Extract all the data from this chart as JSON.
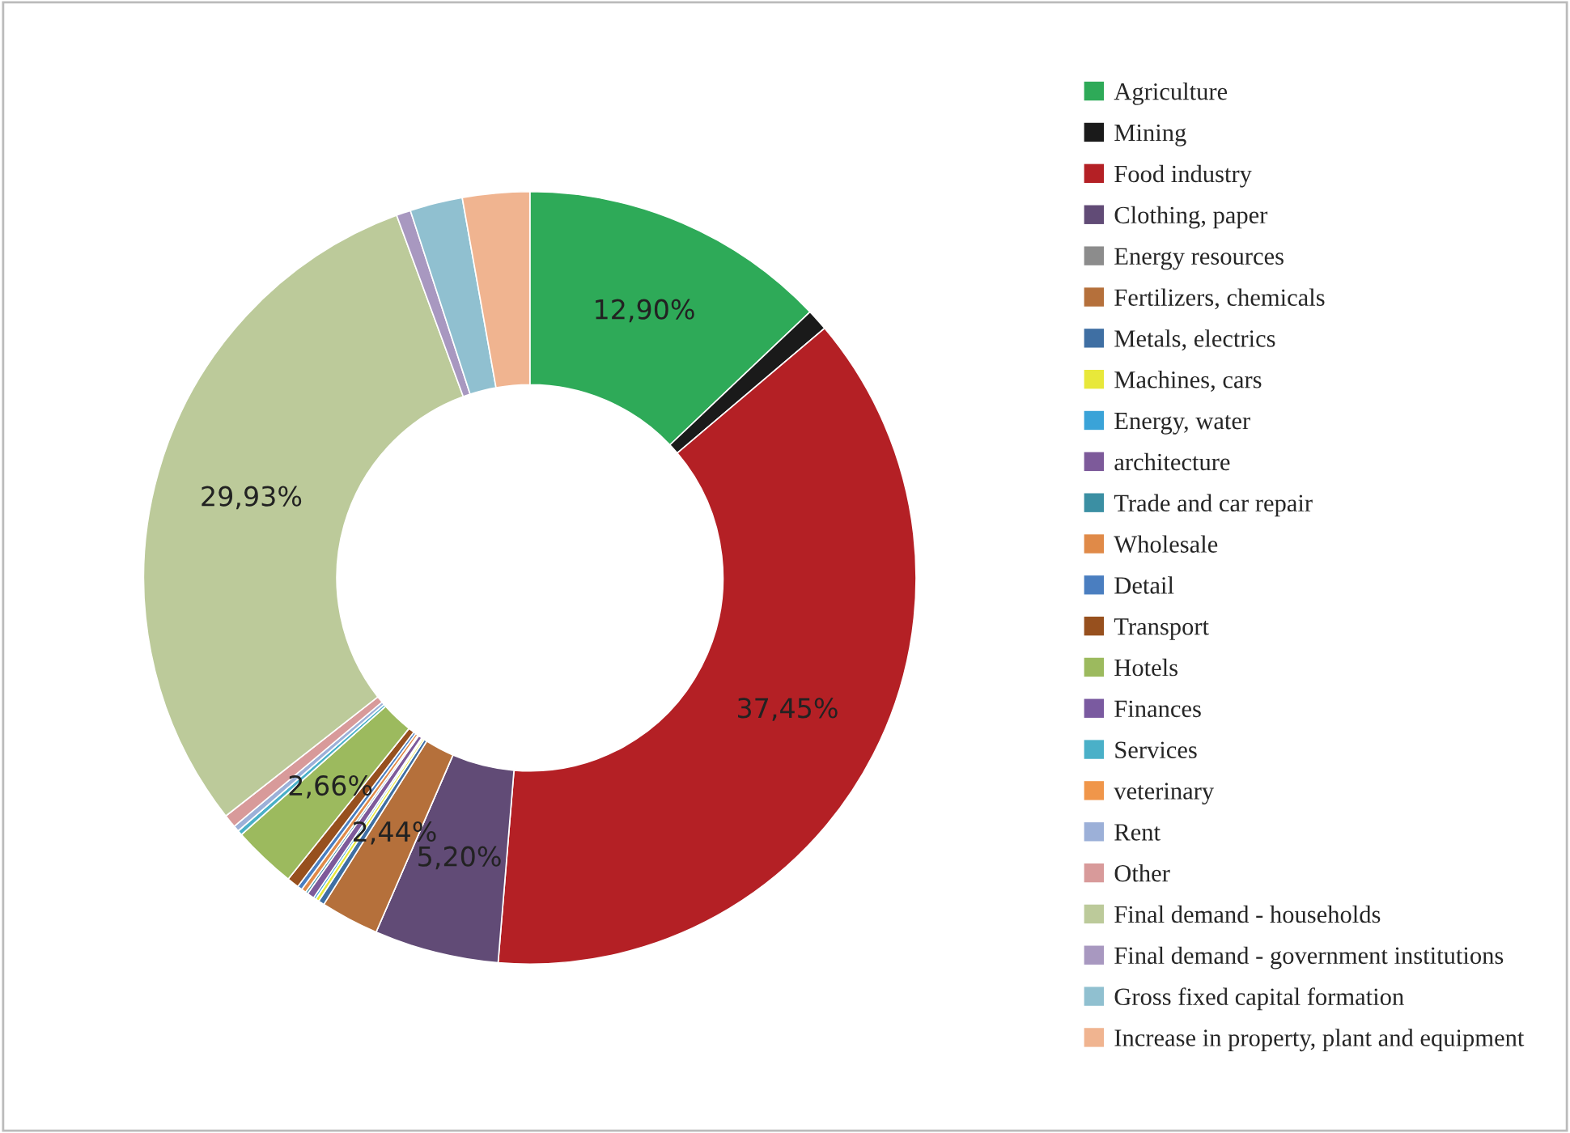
{
  "chart_data": {
    "type": "donut",
    "categories": [
      "Agriculture",
      "Mining",
      "Food industry",
      "Clothing, paper",
      "Energy resources",
      "Fertilizers, chemicals",
      "Metals, electrics",
      "Machines, cars",
      "Energy, water",
      "architecture",
      "Trade and car repair",
      "Wholesale",
      "Detail",
      "Transport",
      "Hotels",
      "Finances",
      "Services",
      "veterinary",
      "Rent",
      "Other",
      "Final demand - households",
      "Final demand - government institutions",
      "Gross fixed capital formation",
      "Increase in property, plant and equipment"
    ],
    "values": [
      12.9,
      0.9,
      37.45,
      5.2,
      null,
      2.44,
      0.25,
      0.15,
      0.1,
      0.3,
      0.1,
      0.2,
      0.2,
      0.5,
      2.66,
      null,
      0.2,
      null,
      0.25,
      0.55,
      29.93,
      0.6,
      2.2,
      2.8
    ],
    "value_labels": [
      "12,90%",
      null,
      "37,45%",
      "5,20%",
      null,
      "2,44%",
      null,
      null,
      null,
      null,
      null,
      null,
      null,
      null,
      "2,66%",
      null,
      null,
      null,
      null,
      null,
      "29,93%",
      null,
      null,
      null
    ],
    "colors": [
      "#2eaa58",
      "#1a1a1a",
      "#b42025",
      "#614b76",
      "#8c8c8c",
      "#b5703b",
      "#3f6fa3",
      "#e8e83a",
      "#3aa3d8",
      "#7d5a9a",
      "#3b8fa3",
      "#e08a48",
      "#4a7ec0",
      "#97501e",
      "#9cba5e",
      "#7a5aa0",
      "#4ab0c8",
      "#f0964a",
      "#9cb0d8",
      "#d89a9a",
      "#bcca9a",
      "#a898c0",
      "#90c0d0",
      "#f0b490"
    ],
    "legend": "right"
  }
}
